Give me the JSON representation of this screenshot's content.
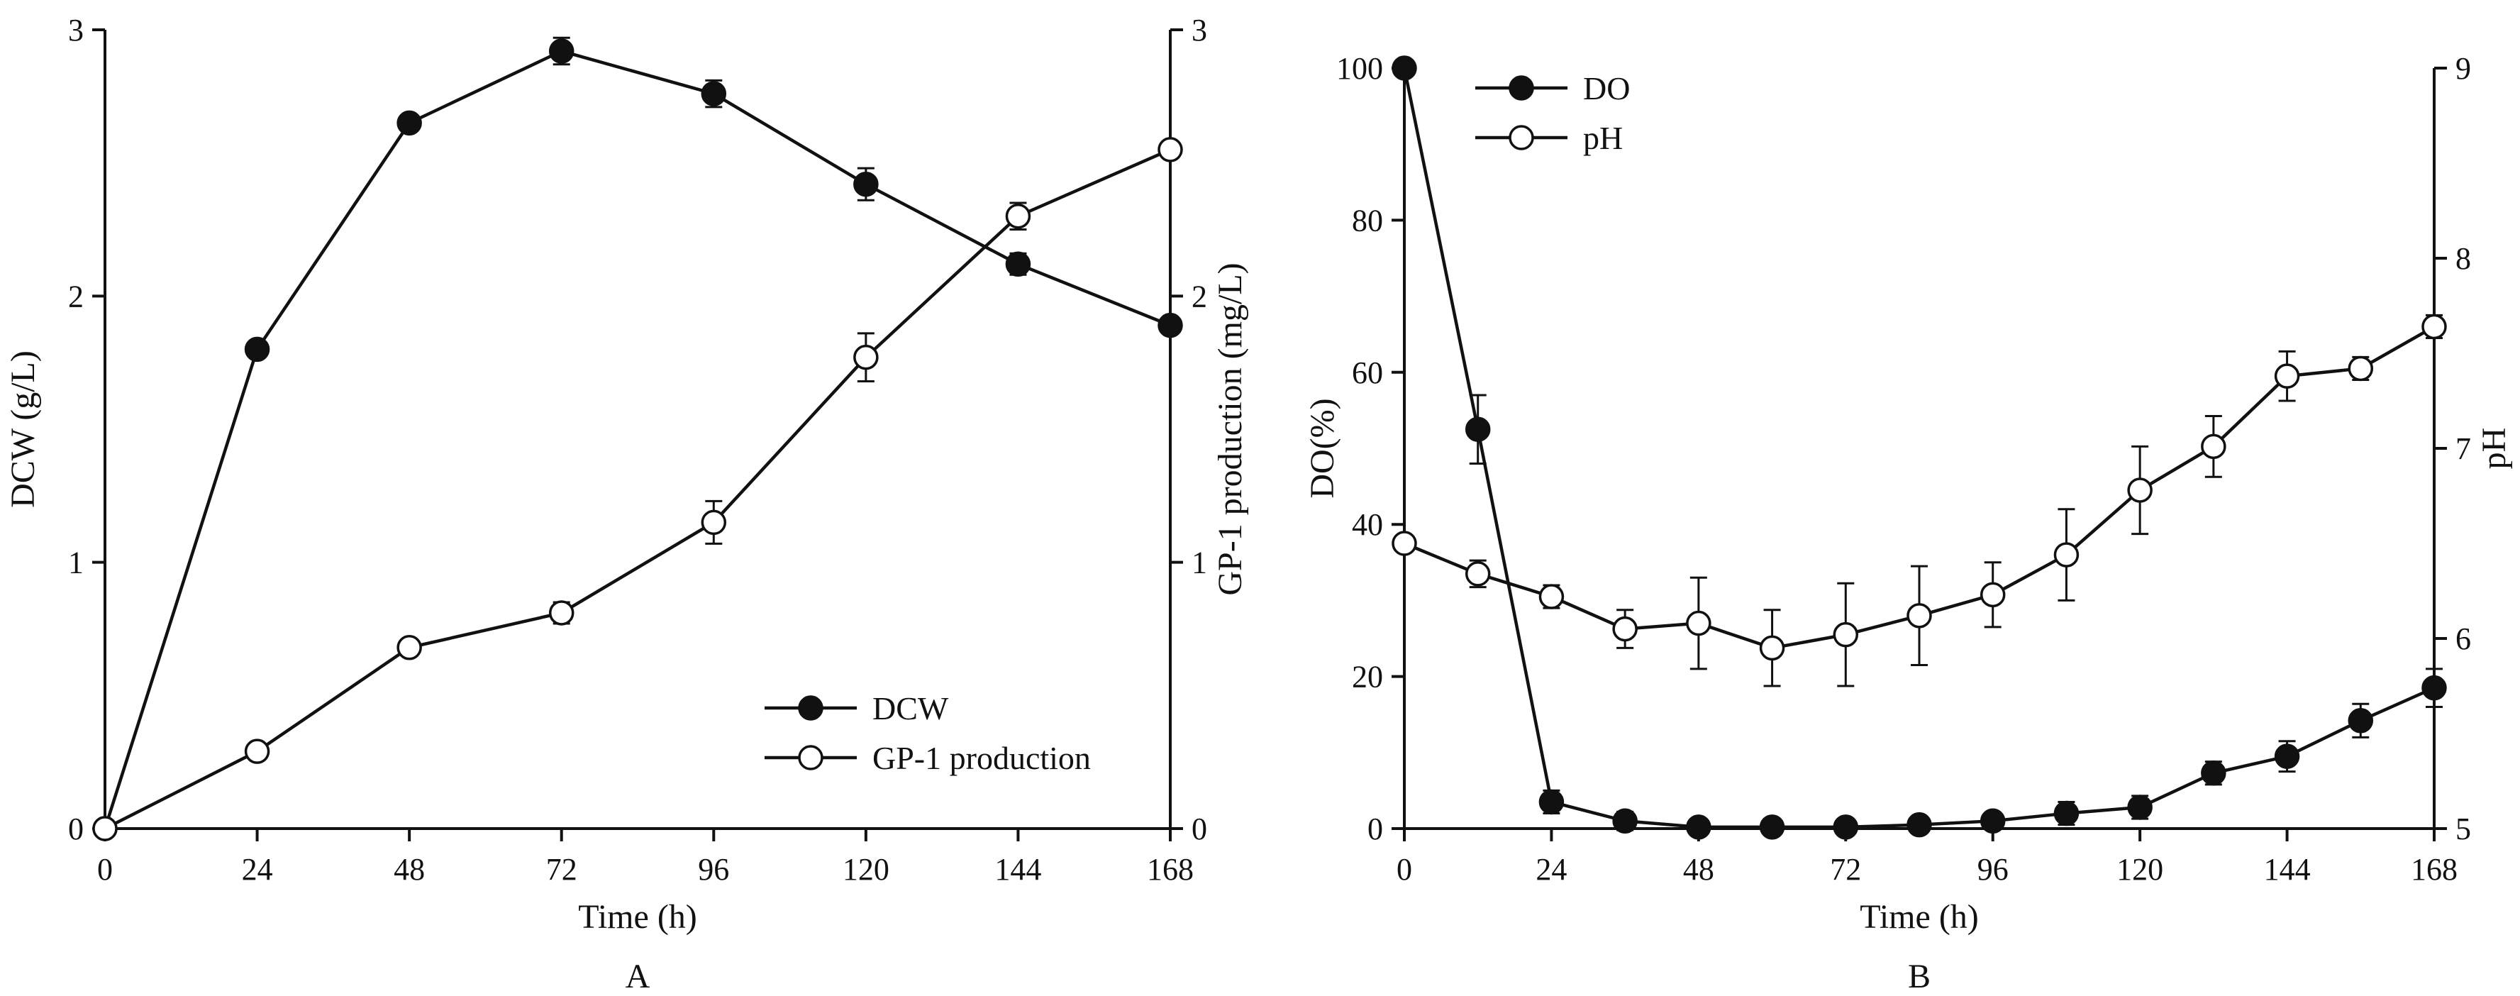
{
  "chart_data": [
    {
      "type": "line",
      "panel": "A",
      "xlabel": "Time (h)",
      "ylabel_left": "DCW (g/L)",
      "ylabel_right": "GP-1 production (mg/L)",
      "xlim": [
        0,
        168
      ],
      "ylim_left": [
        0,
        3
      ],
      "ylim_right": [
        0,
        3
      ],
      "x_ticks": [
        "0",
        "24",
        "48",
        "72",
        "96",
        "120",
        "144",
        "168"
      ],
      "y_ticks_left": [
        "0",
        "1",
        "2",
        "3"
      ],
      "y_ticks_right": [
        "0",
        "1",
        "2",
        "3"
      ],
      "legend": {
        "placement": "bottom-right",
        "entries": [
          "DCW",
          "GP-1 production"
        ]
      },
      "series": [
        {
          "name": "DCW",
          "marker": "filled-circle",
          "axis": "left",
          "x": [
            0,
            24,
            48,
            72,
            96,
            120,
            144,
            168
          ],
          "y": [
            0.0,
            1.8,
            2.65,
            2.92,
            2.76,
            2.42,
            2.12,
            1.89
          ],
          "err": [
            0,
            0.02,
            0.02,
            0.05,
            0.05,
            0.06,
            0.04,
            0.03
          ]
        },
        {
          "name": "GP-1 production",
          "marker": "open-circle",
          "axis": "right",
          "x": [
            0,
            24,
            48,
            72,
            96,
            120,
            144,
            168
          ],
          "y": [
            0.0,
            0.29,
            0.68,
            0.81,
            1.15,
            1.77,
            2.3,
            2.55
          ],
          "err": [
            0,
            0.02,
            0.02,
            0.04,
            0.08,
            0.09,
            0.05,
            0.03
          ]
        }
      ]
    },
    {
      "type": "line",
      "panel": "B",
      "xlabel": "Time (h)",
      "ylabel_left": "DO(%)",
      "ylabel_right": "pH",
      "xlim": [
        0,
        168
      ],
      "ylim_left": [
        0,
        100
      ],
      "ylim_right": [
        5,
        9
      ],
      "x_ticks": [
        "0",
        "24",
        "48",
        "72",
        "96",
        "120",
        "144",
        "168"
      ],
      "y_ticks_left": [
        "0",
        "20",
        "40",
        "60",
        "80",
        "100"
      ],
      "y_ticks_right": [
        "5",
        "6",
        "7",
        "8",
        "9"
      ],
      "legend": {
        "placement": "top-left",
        "entries": [
          "DO",
          "pH"
        ]
      },
      "series": [
        {
          "name": "DO",
          "marker": "filled-circle",
          "axis": "left",
          "x": [
            0,
            12,
            24,
            36,
            48,
            60,
            72,
            84,
            96,
            108,
            120,
            132,
            144,
            156,
            168
          ],
          "y": [
            100,
            52.5,
            3.5,
            1.0,
            0.2,
            0.2,
            0.2,
            0.5,
            1.0,
            2.0,
            2.8,
            7.3,
            9.5,
            14.2,
            18.5
          ],
          "err": [
            0,
            4.5,
            1.5,
            1.2,
            0.3,
            0.3,
            0.3,
            0.4,
            0.8,
            1.5,
            1.5,
            1.5,
            2.0,
            2.2,
            2.5
          ]
        },
        {
          "name": "pH",
          "marker": "open-circle",
          "axis": "right",
          "x": [
            0,
            12,
            24,
            36,
            48,
            60,
            72,
            84,
            96,
            108,
            120,
            132,
            144,
            156,
            168
          ],
          "y": [
            6.5,
            6.34,
            6.22,
            6.05,
            6.08,
            5.95,
            6.02,
            6.12,
            6.23,
            6.44,
            6.78,
            7.01,
            7.38,
            7.42,
            7.64
          ],
          "err": [
            0,
            0.07,
            0.06,
            0.1,
            0.24,
            0.2,
            0.27,
            0.26,
            0.17,
            0.24,
            0.23,
            0.16,
            0.13,
            0.06,
            0.06
          ]
        }
      ]
    }
  ]
}
